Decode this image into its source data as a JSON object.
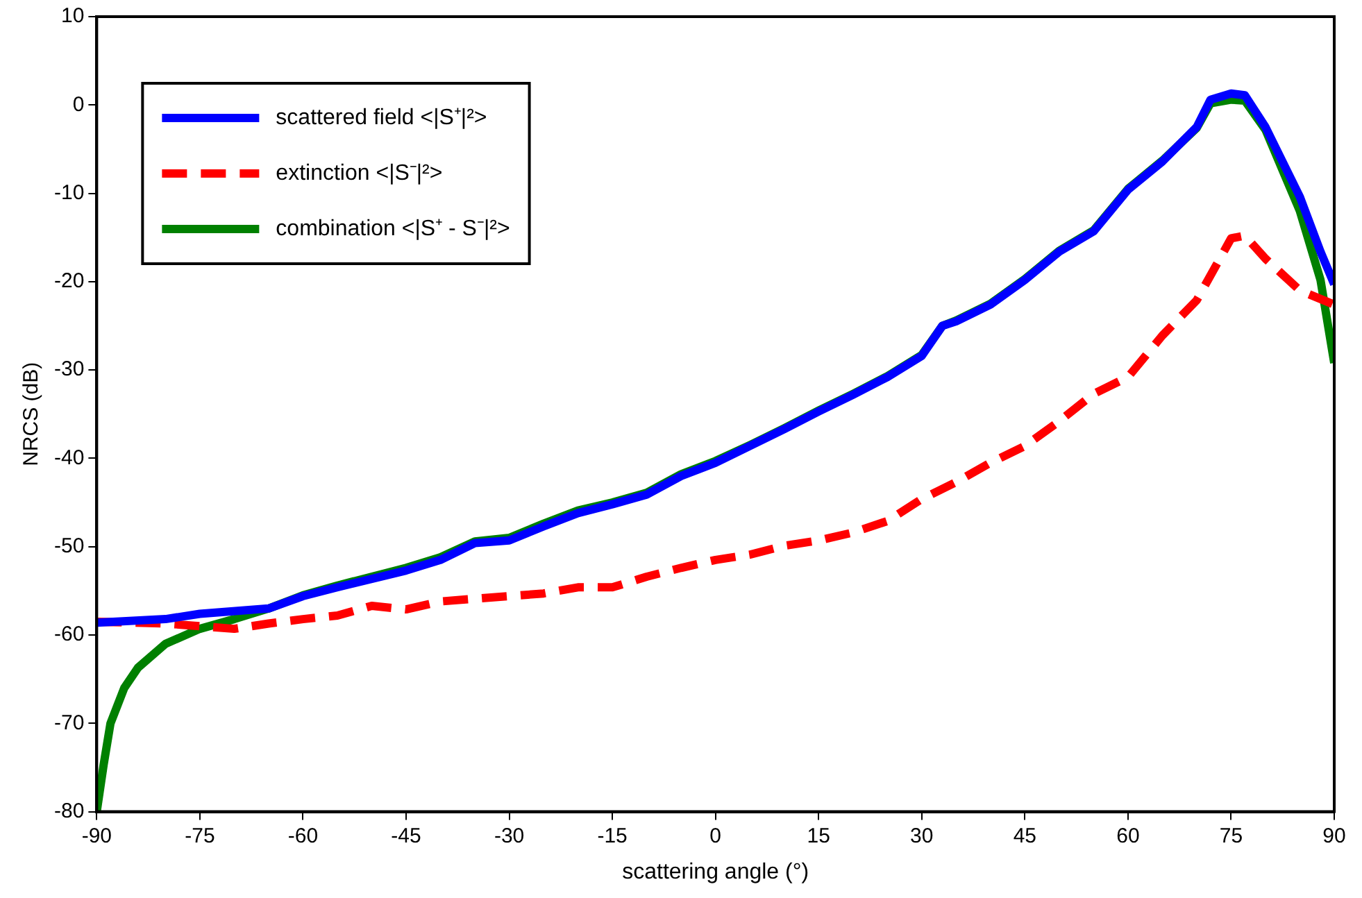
{
  "chart_data": {
    "type": "line",
    "xlabel": "scattering angle (°)",
    "ylabel": "NRCS (dB)",
    "xlim": [
      -90,
      90
    ],
    "xticks": [
      -90,
      -75,
      -60,
      -45,
      -30,
      -15,
      0,
      15,
      30,
      45,
      60,
      75,
      90
    ],
    "ylim": [
      -80,
      10
    ],
    "yticks": [
      -80,
      -70,
      -60,
      -50,
      -40,
      -30,
      -20,
      -10,
      0,
      10
    ],
    "grid": false,
    "legend": "top left",
    "marker": "none",
    "series": [
      {
        "name": "scattered field <|S⁺|²>",
        "color": "#0000ff",
        "line_style": "solid",
        "x": [
          -90,
          -80,
          -75,
          -65,
          -60,
          -55,
          -45,
          -40,
          -35,
          -30,
          -25,
          -20,
          -15,
          -10,
          -5,
          0,
          5,
          10,
          15,
          20,
          25,
          30,
          33,
          35,
          40,
          45,
          50,
          55,
          60,
          65,
          70,
          72,
          75,
          77,
          80,
          85,
          88,
          90
        ],
        "values": [
          -58.6,
          -58.2,
          -57.6,
          -57,
          -55.6,
          -54.6,
          -52.7,
          -51.5,
          -49.6,
          -49.3,
          -47.7,
          -46.2,
          -45.2,
          -44.1,
          -42,
          -40.5,
          -38.6,
          -36.7,
          -34.7,
          -32.8,
          -30.8,
          -28.4,
          -25,
          -24.5,
          -22.6,
          -19.8,
          -16.6,
          -14.3,
          -9.6,
          -6.4,
          -2.5,
          0.6,
          1.3,
          1.1,
          -2.5,
          -10.4,
          -16.6,
          -20.3
        ]
      },
      {
        "name": "extinction <|S⁻|²>",
        "color": "#ff0000",
        "line_style": "dashed",
        "x": [
          -90,
          -80,
          -75,
          -70,
          -65,
          -60,
          -55,
          -50,
          -45,
          -40,
          -35,
          -30,
          -25,
          -20,
          -15,
          -10,
          -5,
          0,
          5,
          10,
          15,
          20,
          25,
          30,
          35,
          40,
          45,
          50,
          55,
          60,
          65,
          70,
          75,
          77,
          80,
          85,
          90
        ],
        "values": [
          -58.5,
          -58.7,
          -59,
          -59.3,
          -58.7,
          -58.2,
          -57.8,
          -56.7,
          -57.1,
          -56.2,
          -55.9,
          -55.6,
          -55.3,
          -54.6,
          -54.6,
          -53.4,
          -52.4,
          -51.5,
          -50.9,
          -49.9,
          -49.3,
          -48.4,
          -47.1,
          -44.6,
          -42.7,
          -40.5,
          -38.6,
          -35.8,
          -32.7,
          -30.8,
          -26.1,
          -22.1,
          -15.1,
          -14.8,
          -17.4,
          -21,
          -22.6
        ]
      },
      {
        "name": "combination <|S⁺ - S⁻|²>",
        "color": "#008000",
        "line_style": "solid",
        "x": [
          -90,
          -89,
          -88,
          -86,
          -84,
          -80,
          -75,
          -70,
          -65,
          -60,
          -55,
          -45,
          -40,
          -35,
          -30,
          -25,
          -20,
          -15,
          -10,
          -5,
          0,
          5,
          10,
          15,
          20,
          25,
          30,
          33,
          35,
          40,
          45,
          50,
          55,
          60,
          65,
          70,
          72,
          75,
          77,
          80,
          85,
          88,
          90
        ],
        "values": [
          -80,
          -74.7,
          -70,
          -66,
          -63.7,
          -61,
          -59.3,
          -58.2,
          -57,
          -55.5,
          -54.4,
          -52.4,
          -51.2,
          -49.4,
          -49,
          -47.4,
          -45.9,
          -45,
          -43.9,
          -41.8,
          -40.3,
          -38.5,
          -36.6,
          -34.6,
          -32.7,
          -30.7,
          -28.3,
          -25,
          -24.4,
          -22.5,
          -19.7,
          -16.5,
          -14.2,
          -9.5,
          -6.3,
          -2.6,
          0.2,
          0.6,
          0.5,
          -2.8,
          -12,
          -19.8,
          -29.2
        ]
      }
    ]
  }
}
